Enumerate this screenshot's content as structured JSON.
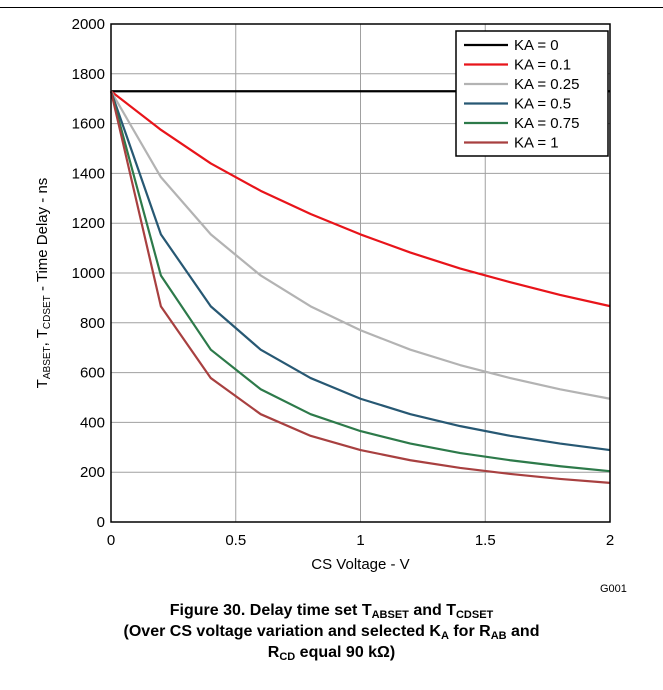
{
  "figure_id": "G001",
  "caption": {
    "line1_prefix": "Figure 30. Delay time set T",
    "line1_sub1": "ABSET",
    "line1_mid": " and T",
    "line1_sub2": "CDSET",
    "line2_prefix": "(Over CS voltage variation and selected K",
    "line2_sub1": "A",
    "line2_mid": " for R",
    "line2_sub2": "AB",
    "line2_suffix": " and",
    "line3_prefix": "R",
    "line3_sub": "CD",
    "line3_suffix": " equal 90 kΩ)"
  },
  "chart_data": {
    "type": "line",
    "xlabel": "CS Voltage - V",
    "ylabel_parts": {
      "t1": "T",
      "s1": "ABSET",
      "t2": ", T",
      "s2": "CDSET",
      "t3": " - Time Delay - ns"
    },
    "xlim": [
      0,
      2
    ],
    "ylim": [
      0,
      2000
    ],
    "xticks": [
      0,
      0.5,
      1,
      1.5,
      2
    ],
    "xtick_labels": [
      "0",
      "0.5",
      "1",
      "1.5",
      "2"
    ],
    "yticks": [
      0,
      200,
      400,
      600,
      800,
      1000,
      1200,
      1400,
      1600,
      1800,
      2000
    ],
    "ytick_labels": [
      "0",
      "200",
      "400",
      "600",
      "800",
      "1000",
      "1200",
      "1400",
      "1600",
      "1800",
      "2000"
    ],
    "grid": true,
    "legend_position": "top-right",
    "x": [
      0,
      0.2,
      0.4,
      0.6,
      0.8,
      1.0,
      1.2,
      1.4,
      1.6,
      1.8,
      2.0
    ],
    "series": [
      {
        "name": "KA = 0",
        "color": "#000000",
        "values": [
          1730,
          1730,
          1730,
          1730,
          1730,
          1730,
          1730,
          1730,
          1730,
          1730,
          1730
        ]
      },
      {
        "name": "KA = 0.1",
        "color": "#e8141a",
        "values": [
          1730,
          1575,
          1440,
          1330,
          1237,
          1155,
          1082,
          1018,
          963,
          912,
          867
        ]
      },
      {
        "name": "KA = 0.25",
        "color": "#b3b3b3",
        "values": [
          1730,
          1385,
          1155,
          990,
          866,
          770,
          692,
          630,
          578,
          533,
          495
        ]
      },
      {
        "name": "KA = 0.5",
        "color": "#275873",
        "values": [
          1730,
          1155,
          866,
          692,
          578,
          495,
          433,
          385,
          346,
          315,
          289
        ]
      },
      {
        "name": "KA = 0.75",
        "color": "#2d7a4a",
        "values": [
          1730,
          990,
          692,
          533,
          433,
          365,
          315,
          277,
          248,
          224,
          204
        ]
      },
      {
        "name": "KA = 1",
        "color": "#a84040",
        "values": [
          1730,
          866,
          578,
          433,
          346,
          289,
          248,
          217,
          193,
          173,
          157
        ]
      }
    ]
  }
}
